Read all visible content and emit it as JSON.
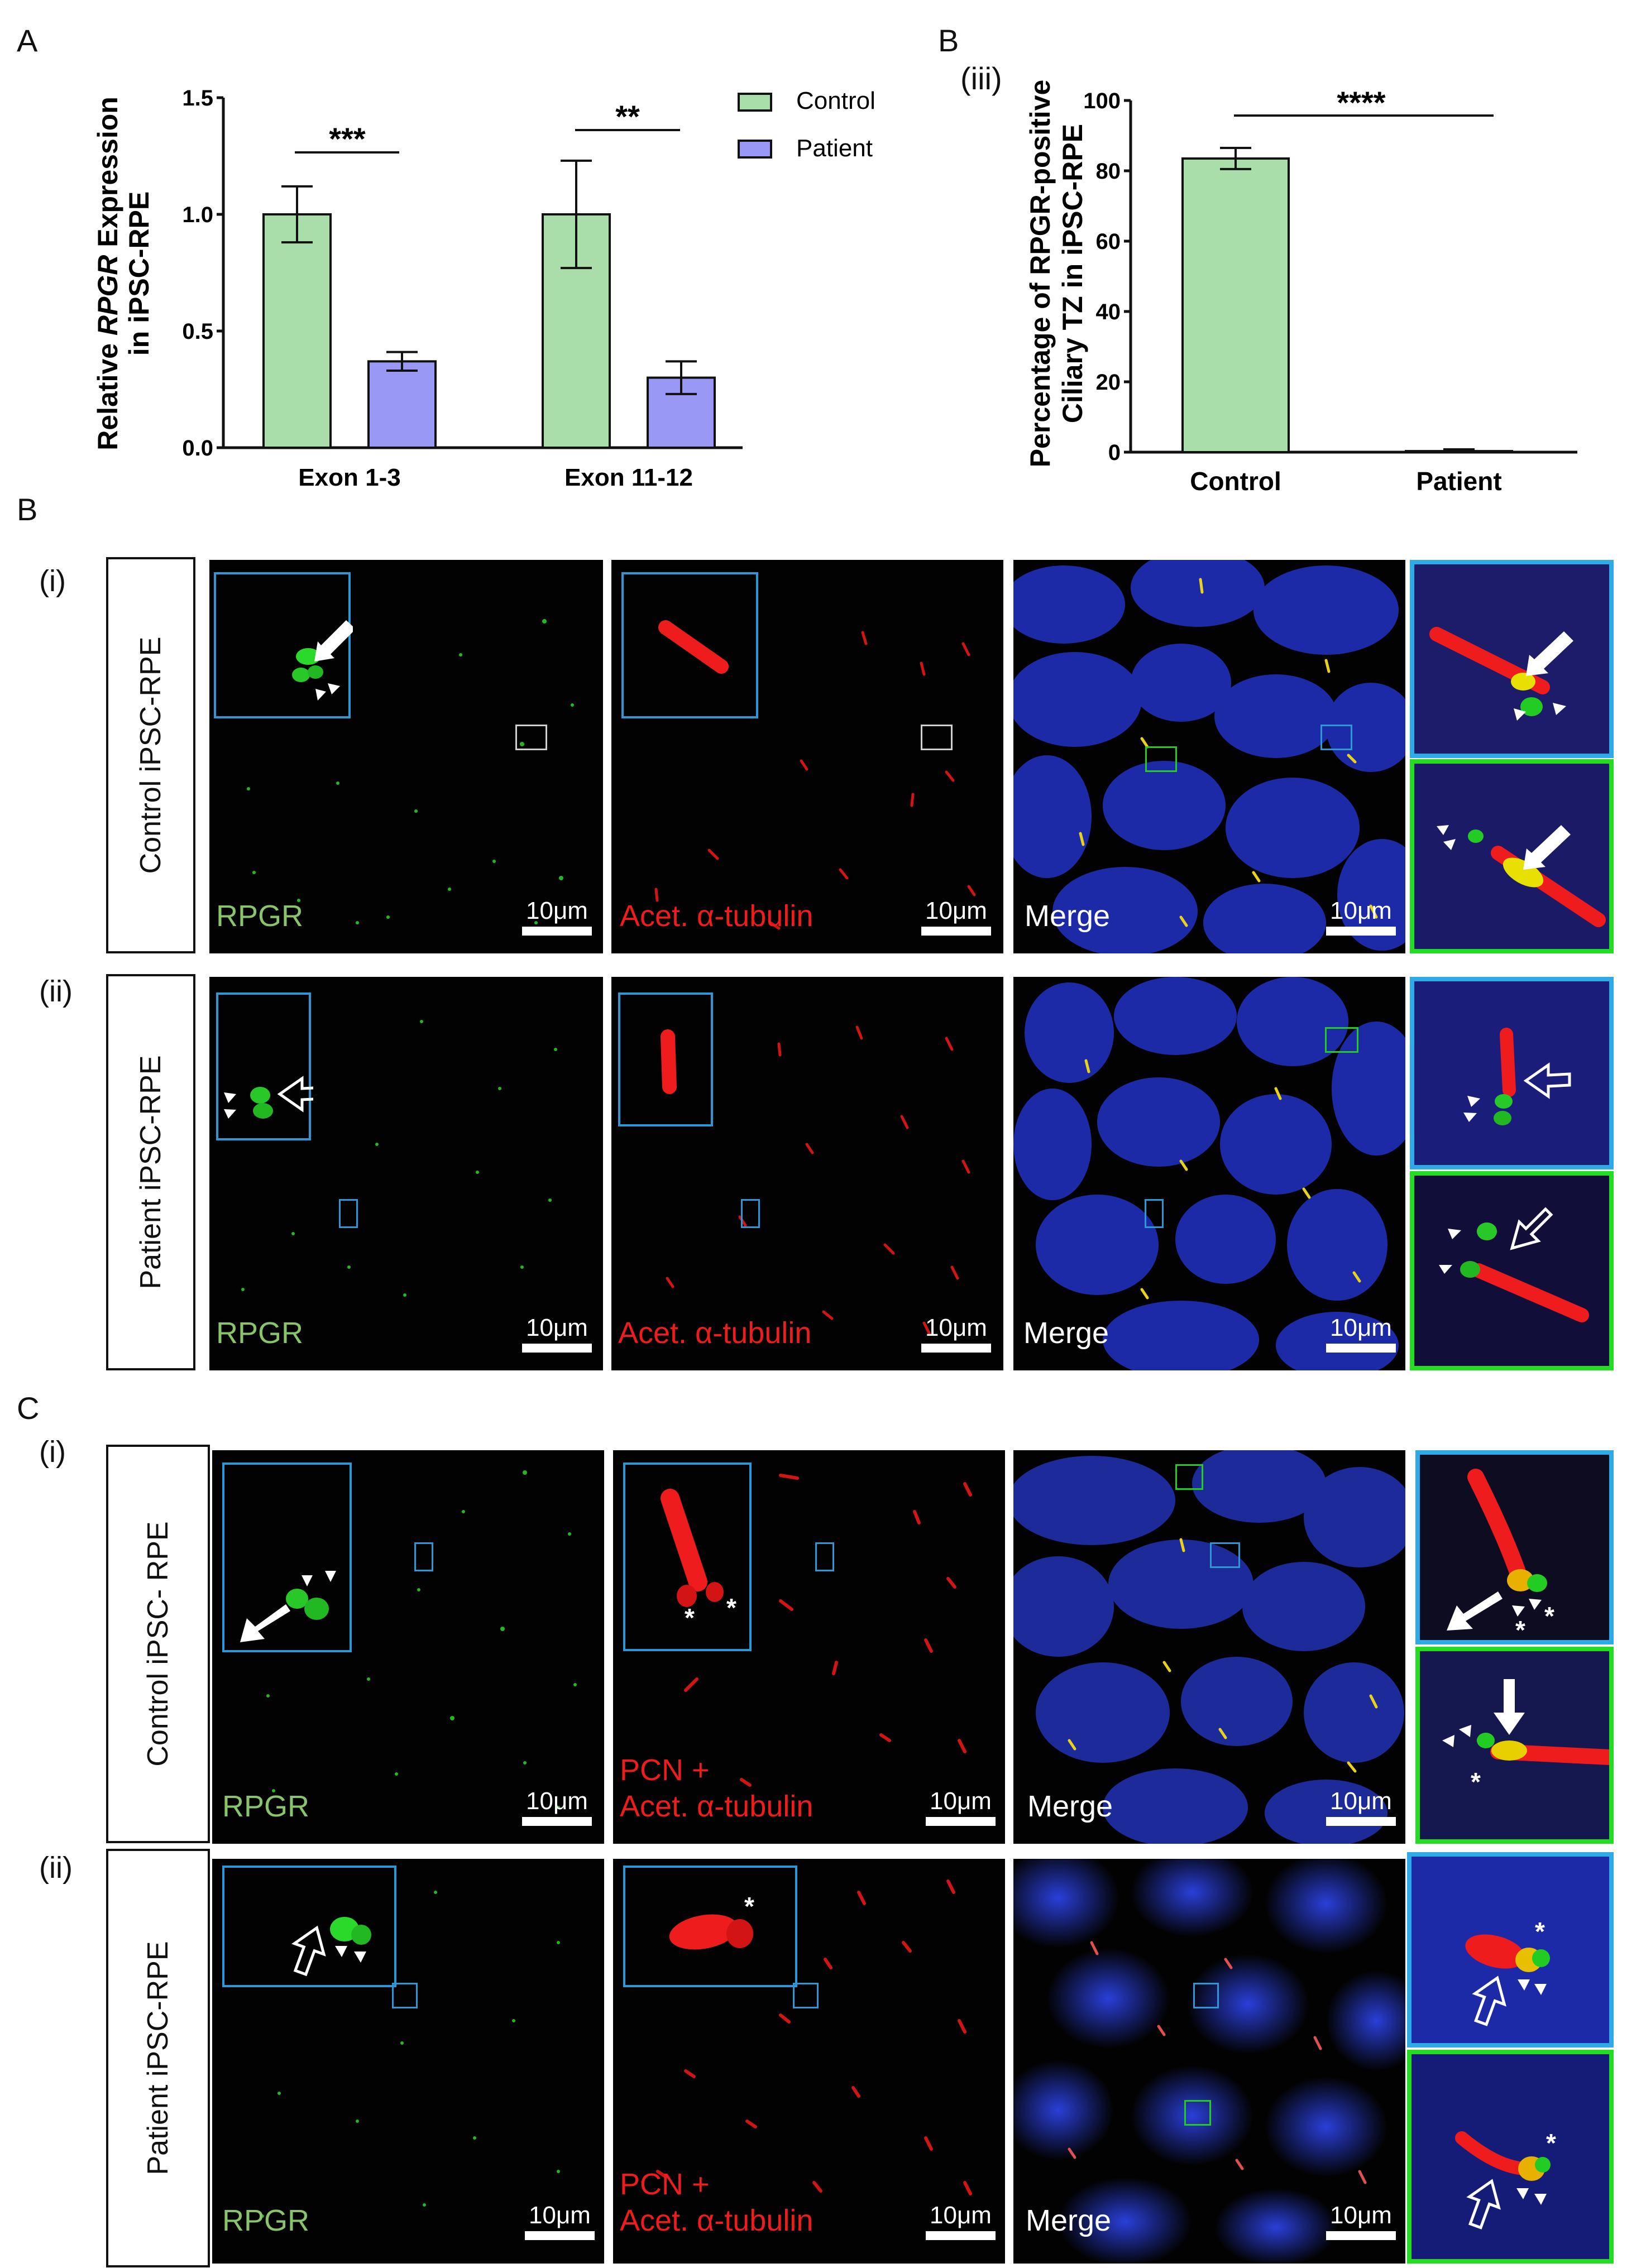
{
  "panel_labels": {
    "A": "A",
    "B_top": "B",
    "B_iii": "(iii)",
    "B": "B",
    "C": "C",
    "B_i": "(i)",
    "B_ii": "(ii)",
    "C_i": "(i)",
    "C_ii": "(ii)"
  },
  "side_labels": {
    "B_i": "Control iPSC-RPE",
    "B_ii": "Patient iPSC-RPE",
    "C_i": "Control iPSC- RPE",
    "C_ii": "Patient iPSC-RPE"
  },
  "channels": {
    "rpgr": "RPGR",
    "acet": "Acet. α-tubulin",
    "pcn": "PCN +",
    "merge": "Merge"
  },
  "scalebar": "10μm",
  "colors": {
    "control": "#a9deaa",
    "patient": "#9999f5",
    "rpgr_label": "#8ac46a",
    "red_label": "#ee1c1c",
    "inset_blue": "#2eaae6",
    "inset_green": "#22dd22",
    "nuclei": "#1c2aa8"
  },
  "chart_data": [
    {
      "type": "bar",
      "categories": [
        "Exon 1-3",
        "Exon 11-12"
      ],
      "series": [
        {
          "name": "Control",
          "values": [
            1.0,
            1.0
          ],
          "error": [
            0.12,
            0.23
          ]
        },
        {
          "name": "Patient",
          "values": [
            0.37,
            0.3
          ],
          "error": [
            0.04,
            0.07
          ]
        }
      ],
      "ylabel_pre": "Relative ",
      "ylabel_italic": "RPGR",
      "ylabel_post": " Expression",
      "ylabel_line2": "in iPSC-RPE",
      "ylim": [
        0,
        1.5
      ],
      "yticks": [
        "0.0",
        "0.5",
        "1.0",
        "1.5"
      ],
      "significance": [
        "***",
        "**"
      ],
      "legend_position": "top-right"
    },
    {
      "type": "bar",
      "categories": [
        "Control",
        "Patient"
      ],
      "series": [
        {
          "values": [
            83.5,
            0.3
          ],
          "error": [
            3,
            0.5
          ]
        }
      ],
      "ylabel_line1": "Percentage of RPGR-positive",
      "ylabel_line2": "Ciliary TZ in iPSC-RPE",
      "ylim": [
        0,
        100
      ],
      "yticks": [
        "0",
        "20",
        "40",
        "60",
        "80",
        "100"
      ],
      "significance": [
        "****"
      ]
    }
  ]
}
